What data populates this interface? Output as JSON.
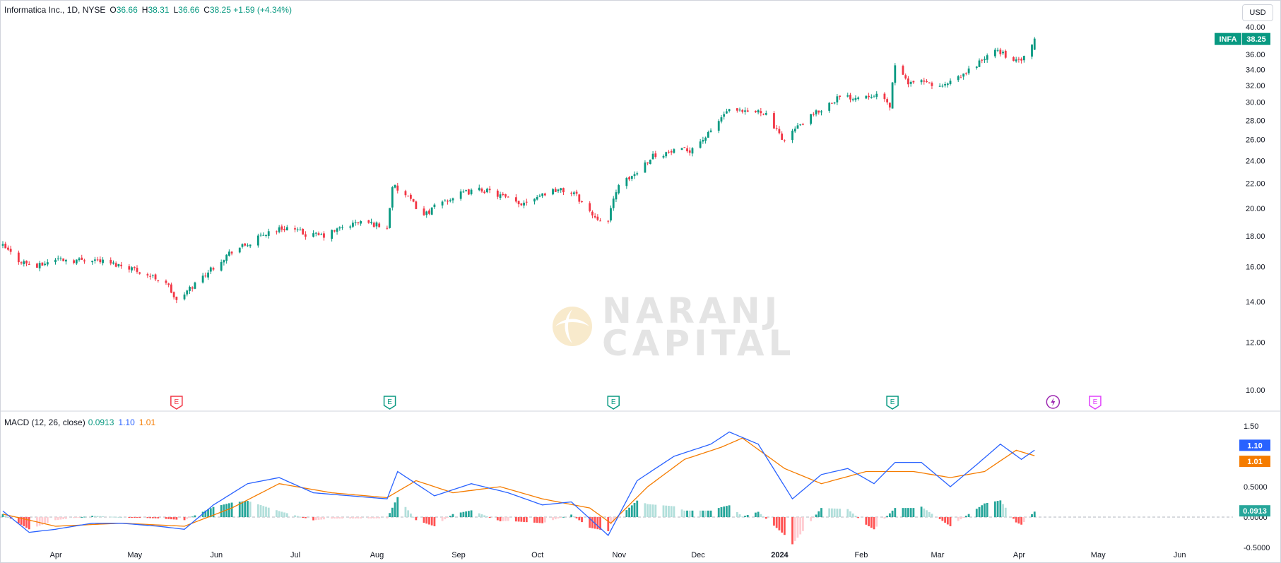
{
  "header": {
    "symbol": "Informatica Inc., 1D, NYSE",
    "open_label": "O",
    "open": "36.66",
    "high_label": "H",
    "high": "38.31",
    "low_label": "L",
    "low": "36.66",
    "close_label": "C",
    "close": "38.25",
    "change": "+1.59 (+4.34%)"
  },
  "currency": "USD",
  "price_badge": {
    "ticker": "INFA",
    "value": "38.25"
  },
  "macd": {
    "title": "MACD (12, 26, close)",
    "hist_value": "0.0913",
    "macd_value": "1.10",
    "signal_value": "1.01",
    "badge_macd": "1.10",
    "badge_signal": "1.01",
    "badge_hist": "0.0913"
  },
  "watermark": {
    "line1": "NARANJ",
    "line2": "CAPITAL"
  },
  "colors": {
    "up": "#089981",
    "down": "#f23645",
    "macd": "#2962ff",
    "signal": "#f57c00",
    "hist_up_strong": "#26a69a",
    "hist_up_weak": "#b2dfdb",
    "hist_down_strong": "#ff5252",
    "hist_down_weak": "#ffcdd2",
    "earnings_icon": "E",
    "dividend_icon": "lightning-icon"
  },
  "chart_data": {
    "type": "candlestick",
    "price_axis": {
      "ticks": [
        "40.00",
        "36.00",
        "34.00",
        "32.00",
        "30.00",
        "28.00",
        "26.00",
        "24.00",
        "22.00",
        "20.00",
        "18.00",
        "16.00",
        "14.00",
        "12.00",
        "10.00"
      ],
      "range": [
        10,
        40
      ]
    },
    "macd_axis": {
      "ticks": [
        "1.50",
        "0.5000",
        "0.0000",
        "-0.5000"
      ],
      "range": [
        -0.65,
        1.65
      ]
    },
    "x_axis": {
      "labels": [
        "Apr",
        "May",
        "Jun",
        "Jul",
        "Aug",
        "Sep",
        "Oct",
        "Nov",
        "Dec",
        "2024",
        "Feb",
        "Mar",
        "Apr",
        "May",
        "Jun"
      ],
      "bold": [
        "2024"
      ]
    },
    "price_path": [
      [
        "2023-03-14",
        17.3
      ],
      [
        "2023-03-20",
        16.4
      ],
      [
        "2023-03-27",
        16.0
      ],
      [
        "2023-04-03",
        16.5
      ],
      [
        "2023-04-10",
        16.4
      ],
      [
        "2023-04-17",
        16.5
      ],
      [
        "2023-04-24",
        16.2
      ],
      [
        "2023-05-01",
        16.0
      ],
      [
        "2023-05-08",
        15.5
      ],
      [
        "2023-05-15",
        15.1
      ],
      [
        "2023-05-19",
        14.0
      ],
      [
        "2023-05-26",
        15.0
      ],
      [
        "2023-06-02",
        16.0
      ],
      [
        "2023-06-09",
        17.0
      ],
      [
        "2023-06-16",
        17.5
      ],
      [
        "2023-06-23",
        18.3
      ],
      [
        "2023-06-30",
        18.6
      ],
      [
        "2023-07-07",
        18.1
      ],
      [
        "2023-07-14",
        18.0
      ],
      [
        "2023-07-21",
        18.6
      ],
      [
        "2023-07-28",
        19.0
      ],
      [
        "2023-08-03",
        18.8
      ],
      [
        "2023-08-07",
        18.5
      ],
      [
        "2023-08-09",
        21.8
      ],
      [
        "2023-08-14",
        21.0
      ],
      [
        "2023-08-21",
        19.5
      ],
      [
        "2023-08-28",
        20.5
      ],
      [
        "2023-09-05",
        21.2
      ],
      [
        "2023-09-12",
        21.5
      ],
      [
        "2023-09-19",
        21.0
      ],
      [
        "2023-09-26",
        20.3
      ],
      [
        "2023-10-03",
        21.0
      ],
      [
        "2023-10-10",
        21.5
      ],
      [
        "2023-10-17",
        21.2
      ],
      [
        "2023-10-24",
        19.5
      ],
      [
        "2023-10-30",
        19.0
      ],
      [
        "2023-11-02",
        21.5
      ],
      [
        "2023-11-09",
        22.8
      ],
      [
        "2023-11-16",
        24.5
      ],
      [
        "2023-11-23",
        24.8
      ],
      [
        "2023-11-30",
        25.0
      ],
      [
        "2023-12-07",
        26.5
      ],
      [
        "2023-12-14",
        29.0
      ],
      [
        "2023-12-21",
        28.8
      ],
      [
        "2023-12-28",
        29.0
      ],
      [
        "2024-01-04",
        26.0
      ],
      [
        "2024-01-11",
        27.5
      ],
      [
        "2024-01-18",
        29.0
      ],
      [
        "2024-01-25",
        30.5
      ],
      [
        "2024-02-01",
        30.6
      ],
      [
        "2024-02-08",
        31.0
      ],
      [
        "2024-02-14",
        29.6
      ],
      [
        "2024-02-16",
        34.8
      ],
      [
        "2024-02-20",
        32.5
      ],
      [
        "2024-02-27",
        32.3
      ],
      [
        "2024-03-05",
        31.8
      ],
      [
        "2024-03-12",
        33.0
      ],
      [
        "2024-03-19",
        35.0
      ],
      [
        "2024-03-26",
        36.6
      ],
      [
        "2024-04-02",
        35.0
      ],
      [
        "2024-04-05",
        35.5
      ],
      [
        "2024-04-08",
        37.0
      ],
      [
        "2024-04-09",
        38.25
      ]
    ],
    "events": [
      {
        "type": "earnings",
        "date": "2023-05-19",
        "label": "E",
        "color": "#f23645"
      },
      {
        "type": "earnings",
        "date": "2023-08-08",
        "label": "E",
        "color": "#089981"
      },
      {
        "type": "earnings",
        "date": "2023-11-01",
        "label": "E",
        "color": "#089981"
      },
      {
        "type": "earnings",
        "date": "2024-02-15",
        "label": "E",
        "color": "#089981"
      },
      {
        "type": "dividend",
        "date": "2024-04-16",
        "label": "",
        "color": "#9c27b0"
      },
      {
        "type": "earnings",
        "date": "2024-05-02",
        "label": "E",
        "color": "#e040fb"
      }
    ],
    "macd_path": [
      [
        "2023-03-14",
        0.1
      ],
      [
        "2023-03-24",
        -0.25
      ],
      [
        "2023-04-03",
        -0.2
      ],
      [
        "2023-04-17",
        -0.1
      ],
      [
        "2023-04-28",
        -0.1
      ],
      [
        "2023-05-12",
        -0.15
      ],
      [
        "2023-05-22",
        -0.2
      ],
      [
        "2023-06-02",
        0.2
      ],
      [
        "2023-06-15",
        0.55
      ],
      [
        "2023-06-27",
        0.65
      ],
      [
        "2023-07-10",
        0.4
      ],
      [
        "2023-07-24",
        0.35
      ],
      [
        "2023-08-07",
        0.3
      ],
      [
        "2023-08-11",
        0.75
      ],
      [
        "2023-08-25",
        0.35
      ],
      [
        "2023-09-08",
        0.55
      ],
      [
        "2023-09-22",
        0.4
      ],
      [
        "2023-10-05",
        0.2
      ],
      [
        "2023-10-16",
        0.25
      ],
      [
        "2023-10-30",
        -0.3
      ],
      [
        "2023-11-10",
        0.6
      ],
      [
        "2023-11-24",
        1.0
      ],
      [
        "2023-12-08",
        1.2
      ],
      [
        "2023-12-15",
        1.4
      ],
      [
        "2023-12-26",
        1.2
      ],
      [
        "2024-01-08",
        0.3
      ],
      [
        "2024-01-19",
        0.7
      ],
      [
        "2024-01-29",
        0.8
      ],
      [
        "2024-02-08",
        0.55
      ],
      [
        "2024-02-16",
        0.9
      ],
      [
        "2024-02-26",
        0.9
      ],
      [
        "2024-03-08",
        0.5
      ],
      [
        "2024-03-19",
        0.9
      ],
      [
        "2024-03-27",
        1.2
      ],
      [
        "2024-04-04",
        0.95
      ],
      [
        "2024-04-09",
        1.1
      ]
    ],
    "signal_path": [
      [
        "2023-03-14",
        0.05
      ],
      [
        "2023-04-03",
        -0.15
      ],
      [
        "2023-04-28",
        -0.1
      ],
      [
        "2023-05-22",
        -0.15
      ],
      [
        "2023-06-09",
        0.15
      ],
      [
        "2023-06-27",
        0.55
      ],
      [
        "2023-07-17",
        0.4
      ],
      [
        "2023-08-07",
        0.32
      ],
      [
        "2023-08-18",
        0.6
      ],
      [
        "2023-09-01",
        0.4
      ],
      [
        "2023-09-19",
        0.5
      ],
      [
        "2023-10-05",
        0.3
      ],
      [
        "2023-10-23",
        0.15
      ],
      [
        "2023-10-31",
        -0.1
      ],
      [
        "2023-11-14",
        0.5
      ],
      [
        "2023-11-28",
        0.95
      ],
      [
        "2023-12-12",
        1.15
      ],
      [
        "2023-12-20",
        1.3
      ],
      [
        "2024-01-05",
        0.8
      ],
      [
        "2024-01-19",
        0.55
      ],
      [
        "2024-02-05",
        0.75
      ],
      [
        "2024-02-23",
        0.75
      ],
      [
        "2024-03-08",
        0.65
      ],
      [
        "2024-03-21",
        0.75
      ],
      [
        "2024-04-02",
        1.1
      ],
      [
        "2024-04-09",
        1.01
      ]
    ]
  }
}
